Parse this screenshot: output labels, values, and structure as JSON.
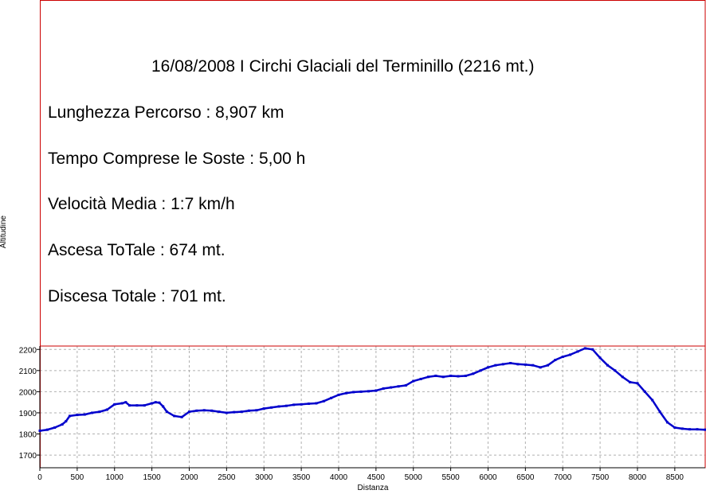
{
  "chart_data": {
    "type": "line",
    "title": "16/08/2008 I Circhi Glaciali del Terminillo (2216 mt.)",
    "xlabel": "Distanza",
    "ylabel": "Altitudine",
    "xlim": [
      0,
      8907
    ],
    "ylim": [
      1640,
      2216
    ],
    "xticks": [
      0,
      500,
      1000,
      1500,
      2000,
      2500,
      3000,
      3500,
      4000,
      4500,
      5000,
      5500,
      6000,
      6500,
      7000,
      7500,
      8000,
      8500
    ],
    "yticks": [
      1700,
      1800,
      1900,
      2000,
      2100,
      2200
    ],
    "grid": true,
    "series": [
      {
        "color": "#0000cc",
        "x": [
          0,
          100,
          200,
          300,
          350,
          400,
          500,
          600,
          700,
          800,
          900,
          1000,
          1100,
          1150,
          1200,
          1300,
          1400,
          1500,
          1550,
          1600,
          1650,
          1700,
          1800,
          1900,
          2000,
          2100,
          2200,
          2300,
          2400,
          2500,
          2600,
          2700,
          2800,
          2900,
          3000,
          3100,
          3200,
          3300,
          3400,
          3500,
          3600,
          3700,
          3800,
          3900,
          4000,
          4100,
          4200,
          4300,
          4400,
          4500,
          4600,
          4700,
          4800,
          4900,
          5000,
          5100,
          5200,
          5300,
          5400,
          5500,
          5600,
          5700,
          5800,
          5900,
          6000,
          6100,
          6200,
          6300,
          6400,
          6500,
          6600,
          6700,
          6800,
          6900,
          7000,
          7100,
          7200,
          7300,
          7400,
          7500,
          7600,
          7700,
          7800,
          7900,
          8000,
          8100,
          8200,
          8300,
          8400,
          8500,
          8600,
          8700,
          8800,
          8907
        ],
        "y": [
          1815,
          1820,
          1830,
          1845,
          1860,
          1885,
          1890,
          1892,
          1900,
          1905,
          1915,
          1940,
          1945,
          1950,
          1935,
          1935,
          1935,
          1945,
          1950,
          1948,
          1930,
          1905,
          1885,
          1880,
          1905,
          1910,
          1912,
          1910,
          1905,
          1900,
          1903,
          1905,
          1910,
          1912,
          1920,
          1925,
          1930,
          1933,
          1938,
          1940,
          1943,
          1945,
          1955,
          1970,
          1985,
          1993,
          1998,
          2000,
          2002,
          2005,
          2015,
          2020,
          2025,
          2030,
          2050,
          2060,
          2070,
          2075,
          2070,
          2075,
          2073,
          2075,
          2085,
          2100,
          2115,
          2125,
          2130,
          2135,
          2130,
          2128,
          2125,
          2115,
          2125,
          2150,
          2165,
          2175,
          2190,
          2205,
          2200,
          2160,
          2125,
          2100,
          2070,
          2045,
          2040,
          2000,
          1960,
          1905,
          1855,
          1830,
          1825,
          1822,
          1822,
          1820
        ]
      }
    ],
    "info_lines": [
      "Lunghezza Percorso : 8,907 km",
      "Tempo Comprese le Soste : 5,00 h",
      "Velocità Media : 1:7 km/h",
      "Ascesa ToTale : 674 mt.",
      "Discesa Totale : 701 mt."
    ]
  },
  "colors": {
    "frame": "#cc0000",
    "line": "#0000cc",
    "grid": "#b0b0b0",
    "axis": "#000000"
  }
}
